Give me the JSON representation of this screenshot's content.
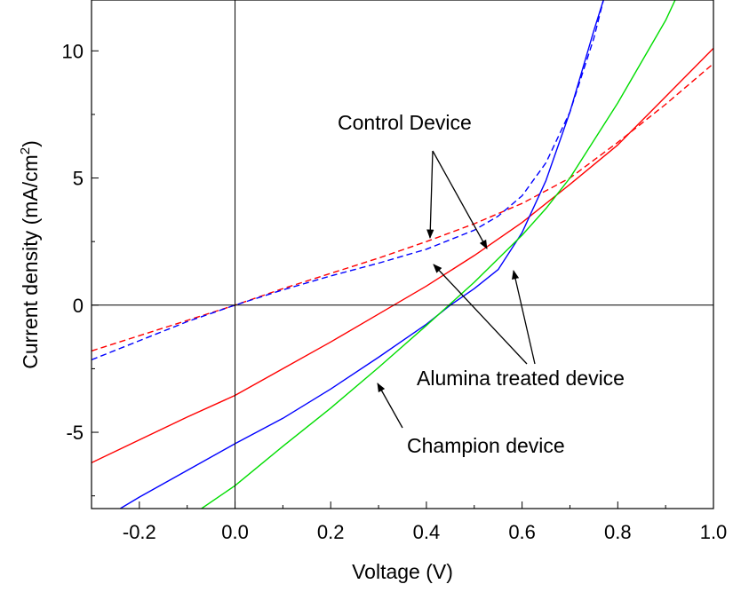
{
  "chart_data": {
    "type": "line",
    "xlabel": "Voltage (V)",
    "ylabel": {
      "main": "Current density (mA/cm",
      "sup": "2",
      "close": ")"
    },
    "xlim": [
      -0.3,
      1.0
    ],
    "ylim": [
      -8,
      12
    ],
    "xticks": [
      {
        "value": -0.2,
        "label": "-0.2"
      },
      {
        "value": 0.0,
        "label": "0.0"
      },
      {
        "value": 0.2,
        "label": "0.2"
      },
      {
        "value": 0.4,
        "label": "0.4"
      },
      {
        "value": 0.6,
        "label": "0.6"
      },
      {
        "value": 0.8,
        "label": "0.8"
      },
      {
        "value": 1.0,
        "label": "1.0"
      }
    ],
    "yticks": [
      {
        "value": -5,
        "label": "-5"
      },
      {
        "value": 0,
        "label": "0"
      },
      {
        "value": 5,
        "label": "5"
      },
      {
        "value": 10,
        "label": "10"
      }
    ],
    "grid": false,
    "zero_lines": true,
    "series": [
      {
        "color": "#ff0000",
        "dash": "solid",
        "x": [
          -0.3,
          -0.2,
          -0.1,
          0.0,
          0.1,
          0.2,
          0.3,
          0.4,
          0.5,
          0.6,
          0.7,
          0.8,
          0.9,
          1.0
        ],
        "y": [
          -6.2,
          -5.3,
          -4.4,
          -3.55,
          -2.5,
          -1.45,
          -0.35,
          0.75,
          1.95,
          3.25,
          4.75,
          6.3,
          8.2,
          10.1
        ]
      },
      {
        "color": "#ff0000",
        "dash": "dashed",
        "x": [
          -0.3,
          -0.2,
          -0.1,
          0.0,
          0.1,
          0.2,
          0.3,
          0.4,
          0.5,
          0.6,
          0.7,
          0.8,
          0.9,
          1.0
        ],
        "y": [
          -1.8,
          -1.2,
          -0.6,
          0.0,
          0.65,
          1.25,
          1.85,
          2.5,
          3.2,
          4.0,
          5.0,
          6.4,
          7.9,
          9.5
        ]
      },
      {
        "color": "#0000ff",
        "dash": "solid",
        "x": [
          -0.24,
          -0.2,
          -0.1,
          0.0,
          0.1,
          0.2,
          0.3,
          0.4,
          0.45,
          0.5,
          0.55,
          0.6,
          0.65,
          0.7,
          0.75,
          0.77
        ],
        "y": [
          -8.0,
          -7.55,
          -6.5,
          -5.45,
          -4.45,
          -3.3,
          -2.05,
          -0.75,
          0.0,
          0.65,
          1.4,
          2.85,
          4.9,
          7.6,
          10.8,
          12.0
        ]
      },
      {
        "color": "#0000ff",
        "dash": "dashed",
        "x": [
          -0.3,
          -0.2,
          -0.1,
          0.0,
          0.1,
          0.2,
          0.3,
          0.4,
          0.5,
          0.55,
          0.6,
          0.65,
          0.7,
          0.75,
          0.77
        ],
        "y": [
          -2.15,
          -1.4,
          -0.65,
          0.0,
          0.6,
          1.15,
          1.65,
          2.2,
          2.95,
          3.5,
          4.3,
          5.6,
          7.6,
          10.5,
          12.0
        ]
      },
      {
        "color": "#00dd00",
        "dash": "solid",
        "x": [
          -0.07,
          0.0,
          0.1,
          0.2,
          0.3,
          0.4,
          0.5,
          0.6,
          0.65,
          0.7,
          0.8,
          0.9,
          0.92
        ],
        "y": [
          -8.0,
          -7.1,
          -5.55,
          -4.05,
          -2.45,
          -0.8,
          0.9,
          2.75,
          3.8,
          5.0,
          7.95,
          11.2,
          12.0
        ]
      }
    ],
    "annotations": {
      "control": "Control Device",
      "alumina": "Alumina treated device",
      "champion": "Champion device"
    }
  }
}
